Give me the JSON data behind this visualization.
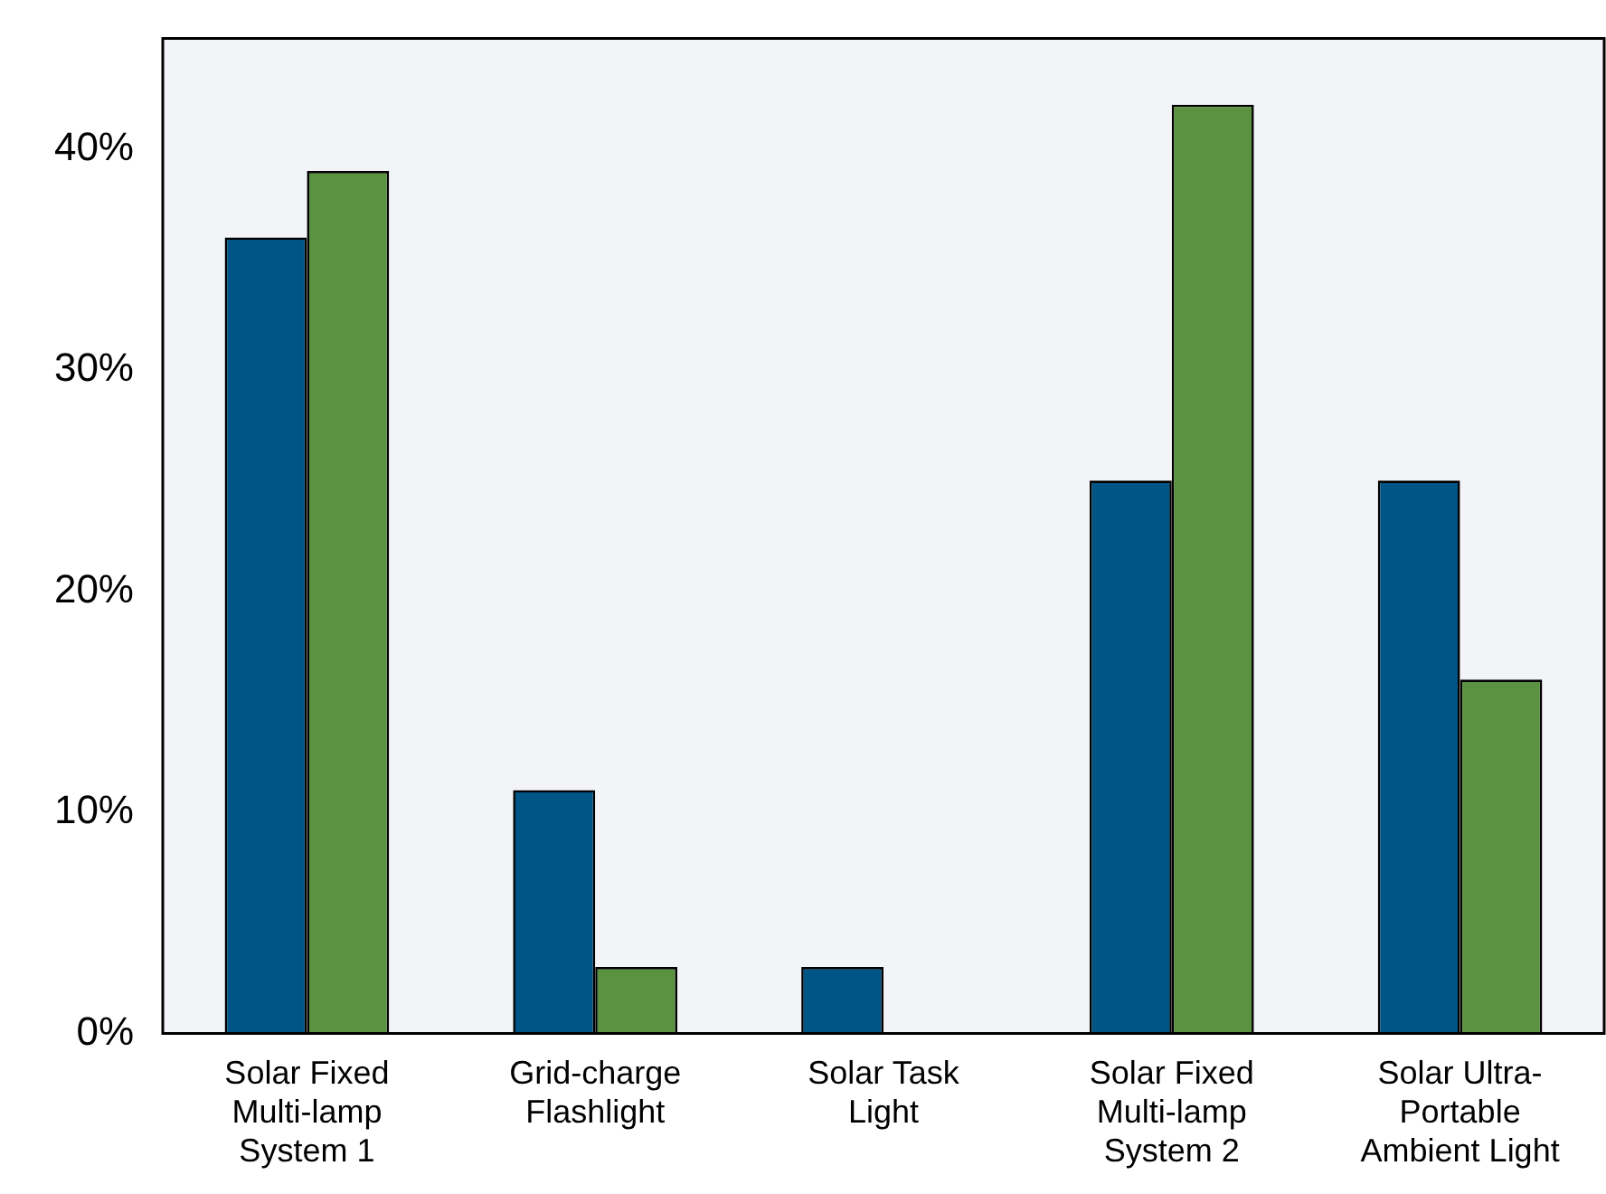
{
  "chart_data": {
    "type": "bar",
    "categories": [
      "Solar Fixed Multi-lamp System 1",
      "Grid-charge Flashlight",
      "Solar Task Light",
      "Solar Fixed Multi-lamp System 2",
      "Solar Ultra-Portable Ambient Light"
    ],
    "series": [
      {
        "color": "#005587",
        "values": [
          36,
          11,
          3,
          25,
          25
        ]
      },
      {
        "color": "#5a9242",
        "values": [
          39,
          3,
          null,
          42,
          16
        ]
      }
    ],
    "ylim": [
      0,
      45
    ],
    "yticks": [
      {
        "value": 0,
        "label": "0%"
      },
      {
        "value": 10,
        "label": "10%"
      },
      {
        "value": 20,
        "label": "20%"
      },
      {
        "value": 30,
        "label": "30%"
      },
      {
        "value": 40,
        "label": "40%"
      }
    ],
    "grid": false,
    "legend": false
  }
}
